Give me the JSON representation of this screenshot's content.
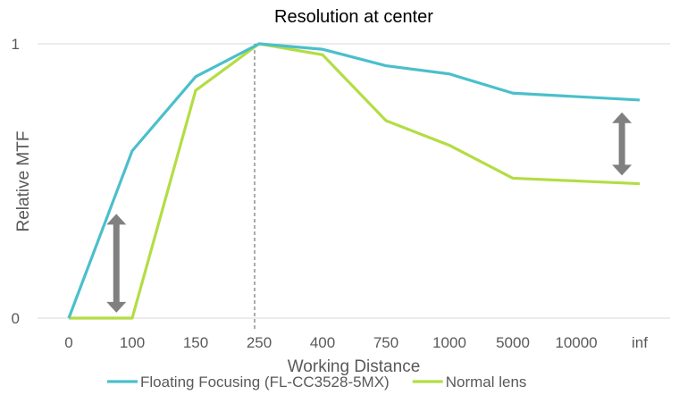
{
  "chart_data": {
    "type": "line",
    "title": "Resolution at center",
    "xlabel": "Working Distance",
    "ylabel": "Relative MTF",
    "categories": [
      "0",
      "100",
      "150",
      "250",
      "400",
      "750",
      "1000",
      "5000",
      "10000",
      "inf"
    ],
    "y_tick_labels": [
      "0",
      "1"
    ],
    "ylim": [
      0,
      1
    ],
    "grid": true,
    "legend_position": "bottom",
    "reference_line_category": "250",
    "series": [
      {
        "name": "Floating Focusing (FL-CC3528-5MX)",
        "color": "#4bbfcc",
        "x": [
          0,
          1,
          2,
          3,
          4,
          5,
          6,
          7,
          9
        ],
        "values": [
          0,
          0.61,
          0.88,
          1.0,
          0.98,
          0.92,
          0.89,
          0.82,
          0.795
        ]
      },
      {
        "name": "Normal lens",
        "color": "#b3dd44",
        "x": [
          0,
          1,
          2,
          3,
          4,
          5,
          6,
          7,
          9
        ],
        "values": [
          0,
          0,
          0.83,
          1.0,
          0.96,
          0.72,
          0.63,
          0.51,
          0.49
        ]
      }
    ],
    "annotations": [
      {
        "type": "double-arrow",
        "color": "#808080",
        "x": 0.75,
        "y_from": 0.02,
        "y_to": 0.38
      },
      {
        "type": "double-arrow",
        "color": "#808080",
        "x": 8.72,
        "y_from": 0.52,
        "y_to": 0.75
      }
    ]
  }
}
